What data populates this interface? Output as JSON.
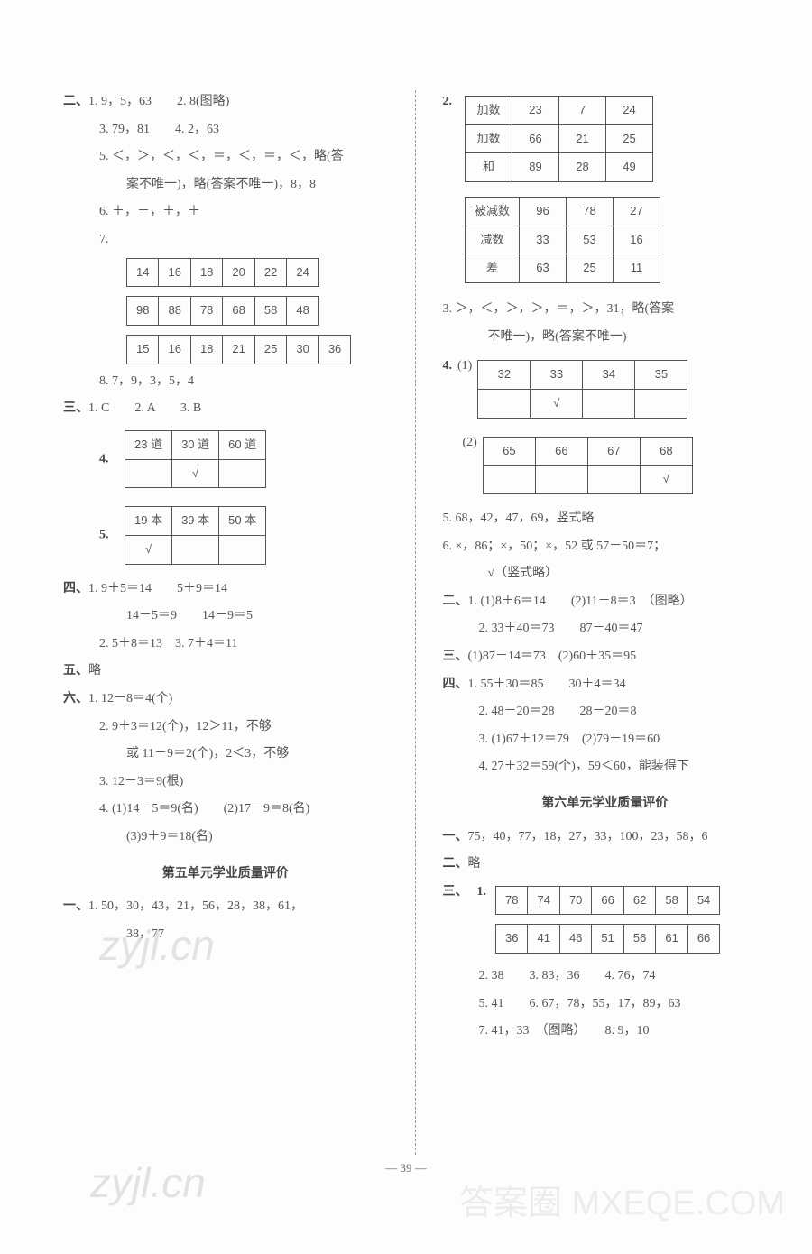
{
  "left": {
    "sec2": {
      "label": "二、",
      "l1": "1. 9，5，63　　2. 8(图略)",
      "l2": "3. 79，81　　4. 2，63",
      "l3": "5. ＜，＞，＜，＜，＝，＜，＝，＜，略(答",
      "l3b": "案不唯一)，略(答案不唯一)，8，8",
      "l4": "6. ＋，－，＋，＋",
      "l5": "7.",
      "t7a": [
        "14",
        "16",
        "18",
        "20",
        "22",
        "24"
      ],
      "t7b": [
        "98",
        "88",
        "78",
        "68",
        "58",
        "48"
      ],
      "t7c": [
        "15",
        "16",
        "18",
        "21",
        "25",
        "30",
        "36"
      ],
      "l6": "8. 7，9，3，5，4"
    },
    "sec3": {
      "label": "三、",
      "l1": "1. C　　2. A　　3. B",
      "l4label": "4.",
      "t4h": [
        "23 道",
        "30 道",
        "60 道"
      ],
      "t4r": [
        "",
        "√",
        ""
      ],
      "l5label": "5.",
      "t5h": [
        "19 本",
        "39 本",
        "50 本"
      ],
      "t5r": [
        "√",
        "",
        ""
      ]
    },
    "sec4": {
      "label": "四、",
      "l1": "1. 9＋5＝14　　5＋9＝14",
      "l2": "14－5＝9　　14－9＝5",
      "l3": "2. 5＋8＝13　3. 7＋4＝11"
    },
    "sec5": {
      "label": "五、",
      "l1": "略"
    },
    "sec6": {
      "label": "六、",
      "l1": "1. 12－8＝4(个)",
      "l2": "2. 9＋3＝12(个)，12＞11，不够",
      "l3": "或 11－9＝2(个)，2＜3，不够",
      "l4": "3. 12－3＝9(根)",
      "l5": "4. (1)14－5＝9(名)　　(2)17－9＝8(名)",
      "l6": "(3)9＋9＝18(名)"
    },
    "title5": "第五单元学业质量评价",
    "secA": {
      "label": "一、",
      "l1": "1. 50，30，43，21，56，28，38，61，",
      "l2": "38，77"
    }
  },
  "right": {
    "q2": {
      "label": "2.",
      "t1": [
        [
          "加数",
          "23",
          "7",
          "24"
        ],
        [
          "加数",
          "66",
          "21",
          "25"
        ],
        [
          "和",
          "89",
          "28",
          "49"
        ]
      ],
      "t2": [
        [
          "被减数",
          "96",
          "78",
          "27"
        ],
        [
          "减数",
          "33",
          "53",
          "16"
        ],
        [
          "差",
          "63",
          "25",
          "11"
        ]
      ]
    },
    "q3a": "3. ＞，＜，＞，＞，＝，＞，31，略(答案",
    "q3b": "不唯一)，略(答案不唯一)",
    "q4": {
      "label": "4.",
      "p1": "(1)",
      "t1": [
        [
          "32",
          "33",
          "34",
          "35"
        ],
        [
          "",
          "√",
          "",
          ""
        ]
      ],
      "p2": "(2)",
      "t2": [
        [
          "65",
          "66",
          "67",
          "68"
        ],
        [
          "",
          "",
          "",
          "√"
        ]
      ]
    },
    "q5": "5. 68，42，47，69，竖式略",
    "q6a": "6. ×，86；×，50；×，52 或 57－50＝7；",
    "q6b": "√（竖式略）",
    "sec2": {
      "label": "二、",
      "l1": "1. (1)8＋6＝14　　(2)11－8＝3　（图略）",
      "l2": "2. 33＋40＝73　　87－40＝47"
    },
    "sec3": {
      "label": "三、",
      "l1": "(1)87－14＝73　(2)60＋35＝95"
    },
    "sec4": {
      "label": "四、",
      "l1": "1. 55＋30＝85　　30＋4＝34",
      "l2": "2. 48－20＝28　　28－20＝8",
      "l3": "3. (1)67＋12＝79　(2)79－19＝60",
      "l4": "4. 27＋32＝59(个)，59＜60，能装得下"
    },
    "title6": "第六单元学业质量评价",
    "secA": {
      "label": "一、",
      "l1": "75，40，77，18，27，33，100，23，58，6"
    },
    "secB": {
      "label": "二、",
      "l1": "略"
    },
    "secC": {
      "label": "三、",
      "l1label": "1.",
      "t1": [
        "78",
        "74",
        "70",
        "66",
        "62",
        "58",
        "54"
      ],
      "t2": [
        "36",
        "41",
        "46",
        "51",
        "56",
        "61",
        "66"
      ],
      "l2": "2. 38　　3. 83，36　　4. 76，74",
      "l3": "5. 41　　6. 67，78，55，17，89，63",
      "l4": "7. 41，33　（图略）　　8. 9，10"
    }
  },
  "pagenum": "— 39 —",
  "wm1": "zyjl.cn",
  "wm2": "zyjl.cn",
  "wm3": "答案圈\nMXEQE.COM"
}
